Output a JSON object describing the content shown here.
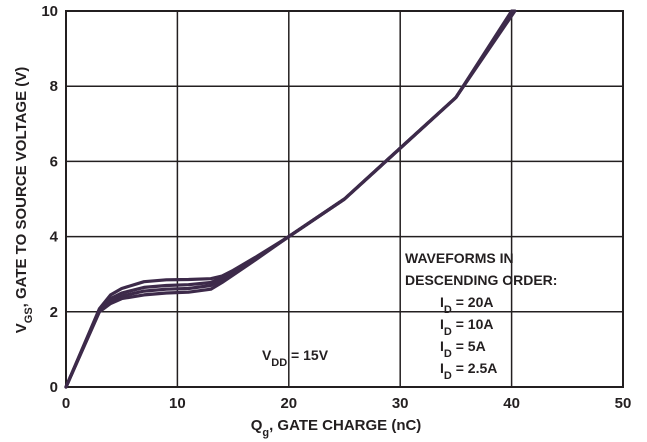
{
  "chart_data": {
    "type": "line",
    "title": "",
    "xlabel": {
      "main": "Q",
      "sub": "g",
      "rest": ", GATE CHARGE (nC)"
    },
    "ylabel": {
      "main": "V",
      "sub": "GS",
      "rest": ", GATE TO SOURCE VOLTAGE (V)"
    },
    "xlim": [
      0,
      50
    ],
    "ylim": [
      0,
      10
    ],
    "x_ticks": [
      "0",
      "10",
      "20",
      "30",
      "40",
      "50"
    ],
    "y_ticks": [
      "0",
      "2",
      "4",
      "6",
      "8",
      "10"
    ],
    "grid": true,
    "line_color": "#3d2a4a",
    "annotation": {
      "main": "V",
      "sub": "DD",
      "rest": " = 15V"
    },
    "legend": {
      "placement": "bottom-right",
      "title_line1": "WAVEFORMS IN",
      "title_line2": "DESCENDING ORDER:",
      "entries": [
        {
          "main": "I",
          "sub": "D",
          "rest": " = 20A"
        },
        {
          "main": "I",
          "sub": "D",
          "rest": " = 10A"
        },
        {
          "main": "I",
          "sub": "D",
          "rest": " = 5A"
        },
        {
          "main": "I",
          "sub": "D",
          "rest": " = 2.5A"
        }
      ]
    },
    "series": [
      {
        "name": "ID = 20A",
        "x": [
          0,
          3,
          4,
          5,
          7,
          9,
          11,
          13,
          14,
          15,
          17,
          20,
          25,
          30,
          35,
          40.3
        ],
        "y": [
          0,
          2.08,
          2.45,
          2.62,
          2.8,
          2.85,
          2.86,
          2.88,
          2.95,
          3.1,
          3.45,
          4.0,
          5.0,
          6.35,
          7.7,
          10.0
        ]
      },
      {
        "name": "ID = 10A",
        "x": [
          0,
          3,
          4,
          5,
          7,
          9,
          11,
          13,
          14,
          15,
          17,
          20,
          25,
          30,
          35,
          40.2
        ],
        "y": [
          0,
          2.05,
          2.35,
          2.5,
          2.65,
          2.7,
          2.72,
          2.78,
          2.9,
          3.05,
          3.42,
          4.0,
          5.0,
          6.35,
          7.7,
          10.0
        ]
      },
      {
        "name": "ID = 5A",
        "x": [
          0,
          3,
          4,
          5,
          7,
          9,
          11,
          13,
          14,
          15,
          17,
          20,
          25,
          30,
          35,
          40.1
        ],
        "y": [
          0,
          2.02,
          2.28,
          2.42,
          2.55,
          2.6,
          2.62,
          2.7,
          2.85,
          3.02,
          3.4,
          4.0,
          5.0,
          6.35,
          7.7,
          10.0
        ]
      },
      {
        "name": "ID = 2.5A",
        "x": [
          0,
          3,
          4,
          5,
          7,
          9,
          11,
          13,
          14,
          15,
          17,
          20,
          25,
          30,
          35,
          40.0
        ],
        "y": [
          0,
          2.0,
          2.22,
          2.35,
          2.45,
          2.5,
          2.52,
          2.6,
          2.78,
          2.98,
          3.38,
          4.0,
          5.0,
          6.35,
          7.7,
          10.0
        ]
      }
    ]
  }
}
